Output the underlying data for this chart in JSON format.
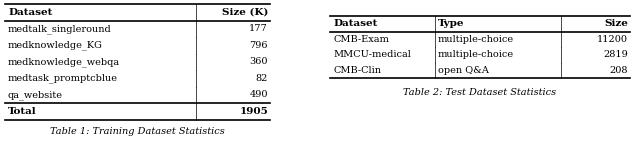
{
  "table1": {
    "headers": [
      "Dataset",
      "Size (K)"
    ],
    "rows": [
      [
        "medtalk_singleround",
        "177"
      ],
      [
        "medknowledge_KG",
        "796"
      ],
      [
        "medknowledge_webqa",
        "360"
      ],
      [
        "medtask_promptcblue",
        "82"
      ],
      [
        "qa_website",
        "490"
      ]
    ],
    "footer": [
      "Total",
      "1905"
    ],
    "caption": "Table 1: Training Dataset Statistics"
  },
  "table2": {
    "headers": [
      "Dataset",
      "Type",
      "Size"
    ],
    "rows": [
      [
        "CMB-Exam",
        "multiple-choice",
        "11200"
      ],
      [
        "MMCU-medical",
        "multiple-choice",
        "2819"
      ],
      [
        "CMB-Clin",
        "open Q&A",
        "208"
      ]
    ],
    "caption": "Table 2: Test Dataset Statistics"
  },
  "bg_color": "#ffffff",
  "line_color": "#000000",
  "header_fontsize": 7.5,
  "body_fontsize": 7.0,
  "caption_fontsize": 7.0
}
